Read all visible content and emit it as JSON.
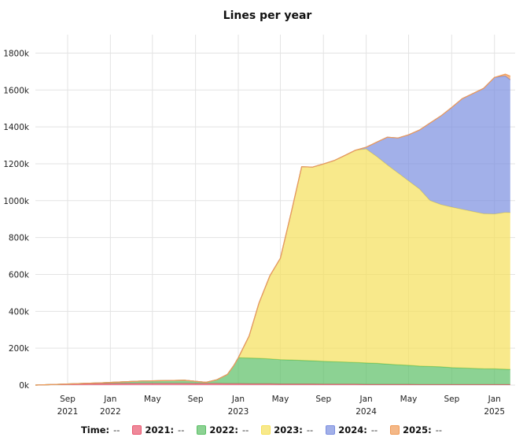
{
  "chart_data": {
    "type": "area",
    "stacked": true,
    "title": "Lines per year",
    "xlabel": "",
    "ylabel": "",
    "ylim": [
      0,
      1900000
    ],
    "y_ticks": [
      0,
      200000,
      400000,
      600000,
      800000,
      1000000,
      1200000,
      1400000,
      1600000,
      1800000
    ],
    "y_tick_labels": [
      "0k",
      "200k",
      "400k",
      "600k",
      "800k",
      "1000k",
      "1200k",
      "1400k",
      "1600k",
      "1800k"
    ],
    "x_range": [
      "2021-06-01",
      "2025-03-01"
    ],
    "x_ticks": [
      {
        "date": "2021-09-01",
        "line1": "Sep",
        "line2": "2021"
      },
      {
        "date": "2022-01-01",
        "line1": "Jan",
        "line2": "2022"
      },
      {
        "date": "2022-05-01",
        "line1": "May",
        "line2": ""
      },
      {
        "date": "2022-09-01",
        "line1": "Sep",
        "line2": ""
      },
      {
        "date": "2023-01-01",
        "line1": "Jan",
        "line2": "2023"
      },
      {
        "date": "2023-05-01",
        "line1": "May",
        "line2": ""
      },
      {
        "date": "2023-09-01",
        "line1": "Sep",
        "line2": ""
      },
      {
        "date": "2024-01-01",
        "line1": "Jan",
        "line2": "2024"
      },
      {
        "date": "2024-05-01",
        "line1": "May",
        "line2": ""
      },
      {
        "date": "2024-09-01",
        "line1": "Sep",
        "line2": ""
      },
      {
        "date": "2025-01-01",
        "line1": "Jan",
        "line2": "2025"
      }
    ],
    "grid": true,
    "legend_position": "bottom",
    "legend_time_label": "Time:",
    "legend_placeholder": "--",
    "x": [
      "2021-06-01",
      "2021-08-01",
      "2021-10-01",
      "2021-12-01",
      "2022-02-01",
      "2022-04-01",
      "2022-06-01",
      "2022-08-01",
      "2022-10-01",
      "2022-11-01",
      "2022-12-01",
      "2022-12-20",
      "2023-01-01",
      "2023-02-01",
      "2023-03-01",
      "2023-04-01",
      "2023-05-01",
      "2023-06-01",
      "2023-07-01",
      "2023-08-01",
      "2023-09-01",
      "2023-10-01",
      "2023-11-01",
      "2023-12-01",
      "2024-01-01",
      "2024-02-01",
      "2024-03-01",
      "2024-04-01",
      "2024-05-01",
      "2024-06-01",
      "2024-07-01",
      "2024-08-01",
      "2024-09-01",
      "2024-10-01",
      "2024-11-01",
      "2024-12-01",
      "2025-01-01",
      "2025-02-01",
      "2025-02-15"
    ],
    "series": [
      {
        "name": "2021",
        "color": "#e8576f",
        "values": [
          0,
          4000,
          6000,
          8000,
          9000,
          10000,
          10000,
          10000,
          9000,
          9000,
          8000,
          8000,
          8000,
          7000,
          7000,
          7000,
          6000,
          6000,
          6000,
          6000,
          5000,
          5000,
          5000,
          5000,
          4000,
          4000,
          4000,
          4000,
          4000,
          3000,
          3000,
          3000,
          3000,
          3000,
          3000,
          3000,
          3000,
          3000,
          3000
        ]
      },
      {
        "name": "2022",
        "color": "#5bbf65",
        "values": [
          0,
          0,
          2000,
          4000,
          8000,
          12000,
          14000,
          16000,
          6000,
          20000,
          50000,
          100000,
          140000,
          140000,
          138000,
          135000,
          132000,
          130000,
          128000,
          126000,
          124000,
          122000,
          120000,
          118000,
          116000,
          114000,
          110000,
          106000,
          103000,
          100000,
          98000,
          96000,
          92000,
          90000,
          88000,
          86000,
          85000,
          83000,
          82000
        ]
      },
      {
        "name": "2023",
        "color": "#f5e05a",
        "values": [
          0,
          0,
          0,
          0,
          0,
          0,
          0,
          0,
          0,
          0,
          0,
          0,
          0,
          120000,
          300000,
          450000,
          550000,
          800000,
          1050000,
          1050000,
          1070000,
          1090000,
          1120000,
          1150000,
          1160000,
          1120000,
          1080000,
          1040000,
          1000000,
          960000,
          900000,
          880000,
          870000,
          860000,
          850000,
          840000,
          840000,
          850000,
          850000
        ]
      },
      {
        "name": "2024",
        "color": "#7b8ee0",
        "values": [
          0,
          0,
          0,
          0,
          0,
          0,
          0,
          0,
          0,
          0,
          0,
          0,
          0,
          0,
          0,
          0,
          0,
          0,
          0,
          0,
          0,
          0,
          0,
          0,
          10000,
          80000,
          150000,
          190000,
          250000,
          320000,
          420000,
          480000,
          540000,
          600000,
          640000,
          680000,
          740000,
          740000,
          720000
        ]
      },
      {
        "name": "2025",
        "color": "#f09a55",
        "values": [
          0,
          0,
          0,
          0,
          0,
          0,
          0,
          0,
          0,
          0,
          0,
          0,
          0,
          0,
          0,
          0,
          0,
          0,
          0,
          0,
          0,
          0,
          0,
          0,
          0,
          0,
          0,
          0,
          0,
          0,
          0,
          0,
          0,
          0,
          0,
          0,
          0,
          10000,
          20000
        ]
      }
    ]
  }
}
